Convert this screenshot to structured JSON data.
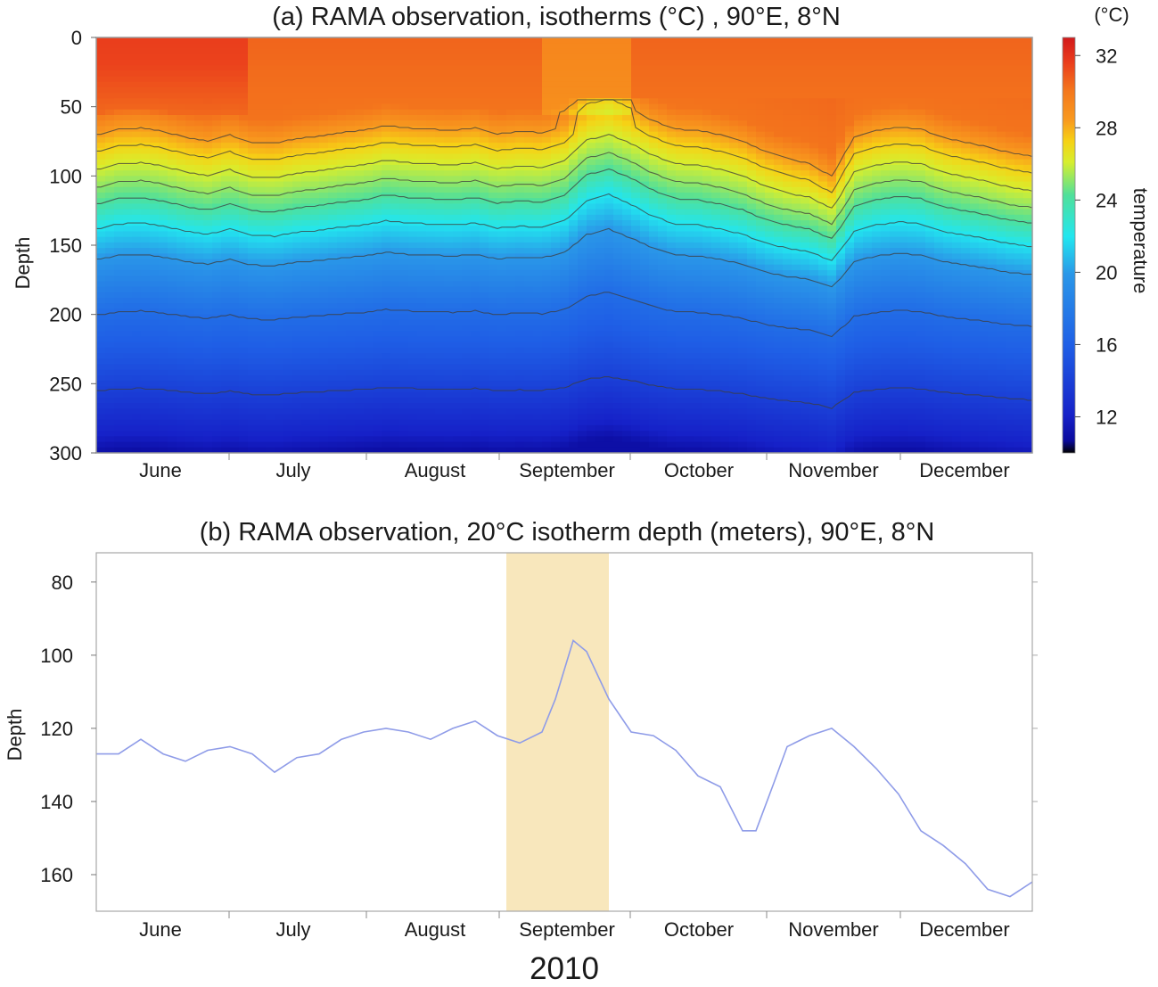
{
  "chart_data": [
    {
      "id": "a",
      "type": "heatmap",
      "title": "(a) RAMA observation, isotherms (°C) , 90°E, 8°N",
      "ylabel": "Depth",
      "ylim": [
        300,
        0
      ],
      "yticks": [
        0,
        50,
        100,
        150,
        200,
        250,
        300
      ],
      "months": [
        "June",
        "July",
        "August",
        "September",
        "October",
        "November",
        "December"
      ],
      "colorbar": {
        "unit": "(°C)",
        "label": "temperature",
        "range": [
          10,
          33
        ],
        "ticks": [
          12,
          16,
          20,
          24,
          28,
          32
        ]
      },
      "time_days": [
        0,
        5,
        10,
        15,
        20,
        25,
        30,
        35,
        40,
        45,
        50,
        55,
        60,
        65,
        70,
        75,
        80,
        85,
        90,
        95,
        100,
        105,
        110,
        115,
        120,
        125,
        130,
        135,
        140,
        145,
        150,
        155,
        160,
        165,
        170,
        175,
        180,
        185,
        190,
        195,
        200,
        205,
        210
      ],
      "thermocline_offset_m": [
        0,
        -5,
        -6,
        -3,
        2,
        5,
        0,
        6,
        7,
        3,
        1,
        -2,
        -4,
        -8,
        -6,
        -5,
        -4,
        -6,
        -1,
        -3,
        -2,
        -8,
        -25,
        -30,
        -22,
        -12,
        -5,
        -4,
        0,
        5,
        14,
        20,
        24,
        35,
        2,
        -4,
        -7,
        -5,
        2,
        6,
        10,
        15,
        18
      ],
      "isotherms_labeled_C": [
        28,
        27,
        26,
        25,
        24,
        22,
        20,
        17,
        14
      ],
      "grid": false
    },
    {
      "id": "b",
      "type": "line",
      "title": "(b) RAMA observation, 20°C isotherm depth (meters), 90°E, 8°N",
      "ylabel": "Depth",
      "xlabel": "2010",
      "ylim": [
        170,
        72
      ],
      "yticks": [
        80,
        100,
        120,
        140,
        160
      ],
      "months": [
        "June",
        "July",
        "August",
        "September",
        "October",
        "November",
        "December"
      ],
      "shaded_interval_days": [
        92,
        115
      ],
      "series": [
        {
          "name": "20°C isotherm depth",
          "color": "#8f9ce8",
          "x_days": [
            0,
            5,
            10,
            15,
            20,
            25,
            30,
            35,
            40,
            45,
            50,
            55,
            60,
            65,
            70,
            75,
            80,
            85,
            90,
            95,
            100,
            103,
            107,
            110,
            115,
            120,
            125,
            130,
            135,
            140,
            145,
            148,
            152,
            155,
            160,
            165,
            170,
            175,
            180,
            185,
            190,
            195,
            200,
            205,
            210
          ],
          "values": [
            127,
            127,
            123,
            127,
            129,
            126,
            125,
            127,
            132,
            128,
            127,
            123,
            121,
            120,
            121,
            123,
            120,
            118,
            122,
            124,
            121,
            112,
            96,
            99,
            112,
            121,
            122,
            126,
            133,
            136,
            148,
            148,
            135,
            125,
            122,
            120,
            125,
            131,
            138,
            148,
            152,
            157,
            164,
            166,
            162
          ]
        }
      ],
      "grid": false
    }
  ]
}
